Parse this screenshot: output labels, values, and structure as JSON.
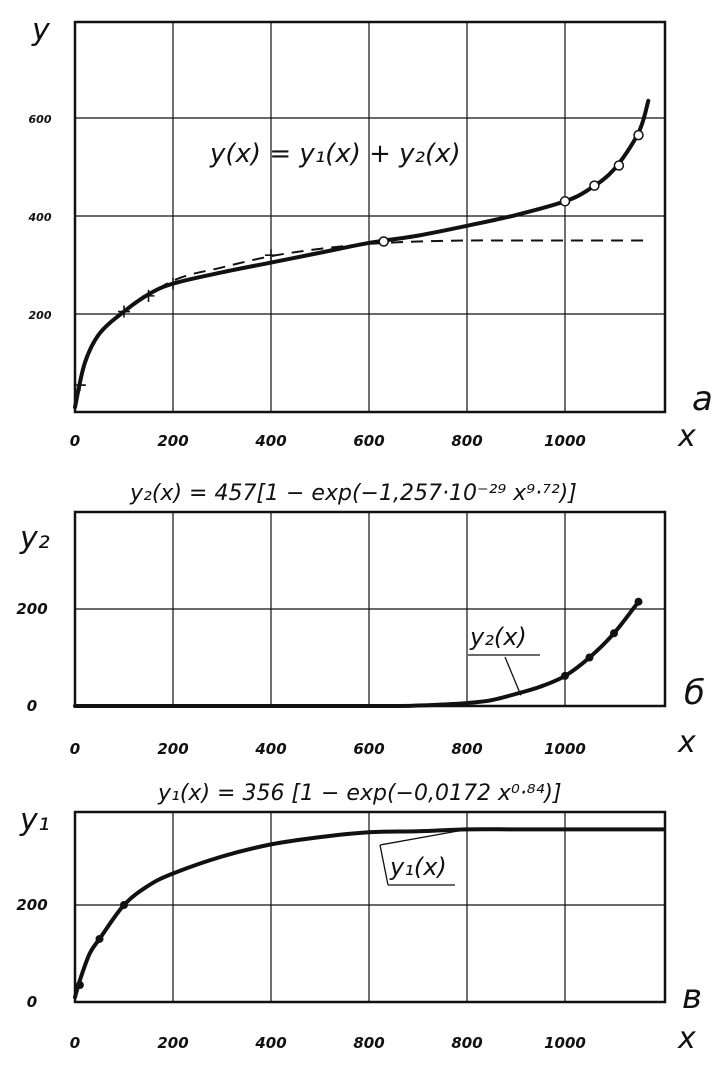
{
  "chart_data": [
    {
      "type": "line",
      "panel_letter": "а",
      "formula": "y(x) = y₁(x) + y₂(x)",
      "ylabel": "y",
      "xlabel": "x",
      "xlim": [
        0,
        1200
      ],
      "ylim": [
        0,
        800
      ],
      "x_ticks": [
        "0",
        "200",
        "400",
        "600",
        "800",
        "1000"
      ],
      "y_ticks": [
        "200",
        "400",
        "600"
      ],
      "grid": true,
      "series": [
        {
          "style": "solid",
          "x": [
            0,
            20,
            50,
            100,
            150,
            200,
            300,
            400,
            500,
            600,
            700,
            800,
            900,
            1000,
            1050,
            1100,
            1150,
            1170
          ],
          "y": [
            10,
            100,
            160,
            205,
            240,
            262,
            285,
            305,
            325,
            345,
            360,
            380,
            402,
            430,
            455,
            495,
            570,
            635
          ]
        },
        {
          "style": "dashed",
          "x": [
            100,
            200,
            300,
            400,
            500,
            600,
            700,
            800,
            900,
            1000,
            1100,
            1160
          ],
          "y": [
            205,
            268,
            295,
            318,
            333,
            343,
            348,
            350,
            350,
            350,
            350,
            350
          ]
        },
        {
          "style": "plus-markers",
          "x": [
            10,
            100,
            150,
            200,
            400
          ],
          "y": [
            55,
            205,
            237,
            262,
            320
          ]
        },
        {
          "style": "circle-markers",
          "x": [
            630,
            1000,
            1060,
            1110,
            1150
          ],
          "y": [
            348,
            430,
            462,
            503,
            565
          ]
        }
      ]
    },
    {
      "type": "line",
      "panel_letter": "б",
      "formula": "y₂(x) = 457[1 − exp(−1,257·10⁻²⁹ x⁹·⁷²)]",
      "ylabel": "y₂",
      "xlabel": "x",
      "curve_label": "y₂(x)",
      "xlim": [
        0,
        1200
      ],
      "ylim": [
        0,
        400
      ],
      "x_ticks": [
        "0",
        "200",
        "400",
        "600",
        "800",
        "1000"
      ],
      "y_ticks": [
        "0",
        "200"
      ],
      "grid": true,
      "series": [
        {
          "style": "solid",
          "x": [
            0,
            600,
            700,
            750,
            800,
            850,
            900,
            950,
            1000,
            1050,
            1100,
            1150
          ],
          "y": [
            0,
            0,
            1,
            3,
            6,
            12,
            25,
            40,
            62,
            100,
            150,
            215
          ]
        },
        {
          "style": "dot-markers",
          "x": [
            1000,
            1050,
            1100,
            1150
          ],
          "y": [
            62,
            100,
            150,
            215
          ]
        }
      ]
    },
    {
      "type": "line",
      "panel_letter": "в",
      "formula": "y₁(x) = 356 [1 − exp(−0,0172 x⁰·⁸⁴)]",
      "ylabel": "y₁",
      "xlabel": "x",
      "curve_label": "y₁(x)",
      "xlim": [
        0,
        1200
      ],
      "ylim": [
        0,
        400
      ],
      "x_ticks": [
        "0",
        "200",
        "400",
        "600",
        "800",
        "1000"
      ],
      "x_ticks_printed": [
        "0",
        "200",
        "400",
        "800",
        "800",
        "1000"
      ],
      "y_ticks": [
        "0",
        "200"
      ],
      "grid": true,
      "series": [
        {
          "style": "solid",
          "x": [
            0,
            10,
            30,
            50,
            100,
            150,
            200,
            300,
            400,
            500,
            600,
            700,
            800,
            900,
            1000,
            1100,
            1200
          ],
          "y": [
            10,
            45,
            100,
            130,
            200,
            240,
            265,
            300,
            325,
            340,
            350,
            352,
            356,
            356,
            356,
            356,
            356
          ]
        },
        {
          "style": "dot-markers",
          "x": [
            10,
            50,
            100
          ],
          "y": [
            35,
            130,
            200
          ]
        }
      ]
    }
  ]
}
